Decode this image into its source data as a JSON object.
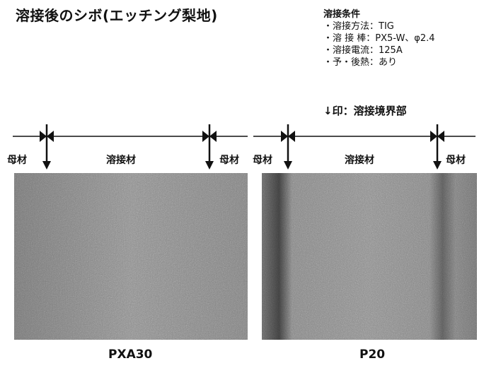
{
  "title": "溶接後のシボ(エッチング梨地)",
  "conditions": {
    "heading": "溶接条件",
    "lines": [
      "・溶接方法：TIG",
      "・溶 接 棒：PX5-W、φ2.4",
      "・溶接電流：125A",
      "・予・後熱：あり"
    ]
  },
  "legend": "↓印：溶接境界部",
  "labels": {
    "base_metal": "母材",
    "weld_metal": "溶接材"
  },
  "panels": [
    {
      "caption": "PXA30",
      "bands": "none"
    },
    {
      "caption": "P20",
      "bands": "dark-boundary-lines"
    }
  ],
  "colors": {
    "photo_base": "#8e8e8e",
    "text": "#111111"
  }
}
